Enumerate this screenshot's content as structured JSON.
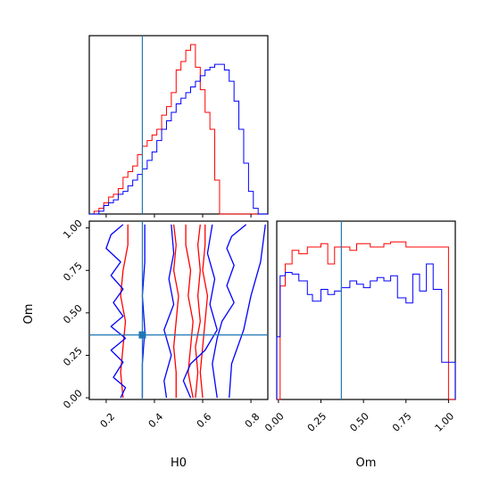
{
  "chart_data": [
    {
      "type": "histogram",
      "panel": "H0 marginal",
      "x_range": [
        0.13,
        0.87
      ],
      "truth": 0.35,
      "bins_x": [
        0.13,
        0.15,
        0.17,
        0.19,
        0.21,
        0.23,
        0.25,
        0.27,
        0.29,
        0.31,
        0.33,
        0.35,
        0.37,
        0.39,
        0.41,
        0.43,
        0.45,
        0.47,
        0.49,
        0.51,
        0.53,
        0.55,
        0.57,
        0.59,
        0.61,
        0.63,
        0.65,
        0.67,
        0.69,
        0.71,
        0.73,
        0.75,
        0.77,
        0.79,
        0.81,
        0.83,
        0.85,
        0.87
      ],
      "series": [
        {
          "color": "#ff0000",
          "values": [
            0,
            1,
            2,
            4,
            6,
            7,
            9,
            13,
            15,
            17,
            21,
            24,
            26,
            28,
            30,
            35,
            38,
            43,
            51,
            54,
            58,
            60,
            52,
            44,
            36,
            30,
            12,
            0,
            0,
            0,
            0,
            0,
            0,
            0,
            0,
            0,
            0
          ]
        },
        {
          "color": "#0000ff",
          "values": [
            0,
            0,
            1,
            3,
            4,
            5,
            7,
            8,
            10,
            12,
            14,
            16,
            19,
            22,
            26,
            30,
            33,
            36,
            39,
            41,
            43,
            45,
            47,
            49,
            51,
            52,
            53,
            53,
            51,
            47,
            40,
            30,
            18,
            8,
            2,
            0,
            0
          ]
        }
      ]
    },
    {
      "type": "contour",
      "panel": "H0 vs Om",
      "xlabel": "H0",
      "ylabel": "Om",
      "x_range": [
        0.13,
        0.87
      ],
      "y_range": [
        -0.01,
        1.04
      ],
      "xticks": [
        "0.2",
        "0.4",
        "0.6",
        "0.8"
      ],
      "yticks": [
        "0.00",
        "0.25",
        "0.50",
        "0.75",
        "1.00"
      ],
      "truth": [
        0.35,
        0.37
      ],
      "contours": [
        {
          "color": "#ff0000",
          "points": [
            [
              0.29,
              1.02
            ],
            [
              0.29,
              0.9
            ],
            [
              0.27,
              0.75
            ],
            [
              0.26,
              0.6
            ],
            [
              0.28,
              0.45
            ],
            [
              0.27,
              0.3
            ],
            [
              0.26,
              0.15
            ],
            [
              0.27,
              0.0
            ]
          ]
        },
        {
          "color": "#ff0000",
          "points": [
            [
              0.48,
              1.02
            ],
            [
              0.49,
              0.9
            ],
            [
              0.48,
              0.75
            ],
            [
              0.5,
              0.6
            ],
            [
              0.49,
              0.45
            ],
            [
              0.48,
              0.3
            ],
            [
              0.49,
              0.15
            ],
            [
              0.49,
              0.0
            ]
          ]
        },
        {
          "color": "#ff0000",
          "points": [
            [
              0.53,
              1.02
            ],
            [
              0.53,
              0.9
            ],
            [
              0.55,
              0.75
            ],
            [
              0.54,
              0.6
            ],
            [
              0.56,
              0.45
            ],
            [
              0.55,
              0.3
            ],
            [
              0.54,
              0.15
            ],
            [
              0.56,
              0.0
            ]
          ]
        },
        {
          "color": "#ff0000",
          "points": [
            [
              0.59,
              1.02
            ],
            [
              0.58,
              0.9
            ],
            [
              0.59,
              0.75
            ],
            [
              0.58,
              0.6
            ],
            [
              0.59,
              0.45
            ],
            [
              0.57,
              0.3
            ],
            [
              0.58,
              0.15
            ],
            [
              0.57,
              0.0
            ]
          ]
        },
        {
          "color": "#ff0000",
          "points": [
            [
              0.61,
              1.02
            ],
            [
              0.61,
              0.9
            ],
            [
              0.6,
              0.75
            ],
            [
              0.62,
              0.6
            ],
            [
              0.61,
              0.45
            ],
            [
              0.6,
              0.3
            ],
            [
              0.59,
              0.15
            ],
            [
              0.6,
              0.0
            ]
          ]
        },
        {
          "color": "#0000ff",
          "points": [
            [
              0.27,
              1.02
            ],
            [
              0.22,
              0.96
            ],
            [
              0.2,
              0.88
            ],
            [
              0.26,
              0.8
            ],
            [
              0.22,
              0.72
            ],
            [
              0.27,
              0.64
            ],
            [
              0.23,
              0.56
            ],
            [
              0.27,
              0.48
            ],
            [
              0.22,
              0.42
            ],
            [
              0.28,
              0.35
            ],
            [
              0.22,
              0.28
            ],
            [
              0.27,
              0.21
            ],
            [
              0.23,
              0.12
            ],
            [
              0.28,
              0.06
            ],
            [
              0.26,
              0.0
            ]
          ]
        },
        {
          "color": "#0000ff",
          "points": [
            [
              0.36,
              1.02
            ],
            [
              0.36,
              0.8
            ],
            [
              0.35,
              0.6
            ],
            [
              0.36,
              0.4
            ],
            [
              0.35,
              0.2
            ],
            [
              0.35,
              0.0
            ]
          ]
        },
        {
          "color": "#0000ff",
          "points": [
            [
              0.47,
              1.02
            ],
            [
              0.48,
              0.85
            ],
            [
              0.46,
              0.7
            ],
            [
              0.48,
              0.55
            ],
            [
              0.44,
              0.4
            ],
            [
              0.47,
              0.25
            ],
            [
              0.44,
              0.1
            ],
            [
              0.45,
              0.0
            ]
          ]
        },
        {
          "color": "#0000ff",
          "points": [
            [
              0.64,
              1.02
            ],
            [
              0.62,
              0.85
            ],
            [
              0.65,
              0.7
            ],
            [
              0.63,
              0.55
            ],
            [
              0.66,
              0.4
            ],
            [
              0.61,
              0.28
            ],
            [
              0.55,
              0.2
            ],
            [
              0.52,
              0.1
            ],
            [
              0.55,
              0.0
            ]
          ]
        },
        {
          "color": "#0000ff",
          "points": [
            [
              0.78,
              1.02
            ],
            [
              0.72,
              0.95
            ],
            [
              0.7,
              0.88
            ],
            [
              0.73,
              0.78
            ],
            [
              0.7,
              0.66
            ],
            [
              0.73,
              0.56
            ],
            [
              0.68,
              0.45
            ],
            [
              0.66,
              0.35
            ],
            [
              0.64,
              0.2
            ],
            [
              0.66,
              0.0
            ]
          ]
        },
        {
          "color": "#0000ff",
          "points": [
            [
              0.86,
              1.02
            ],
            [
              0.84,
              0.8
            ],
            [
              0.8,
              0.6
            ],
            [
              0.77,
              0.4
            ],
            [
              0.72,
              0.2
            ],
            [
              0.71,
              0.0
            ]
          ]
        }
      ]
    },
    {
      "type": "histogram",
      "panel": "Om marginal",
      "xlabel": "Om",
      "x_range": [
        -0.01,
        1.04
      ],
      "truth": 0.37,
      "xticks": [
        "0.00",
        "0.25",
        "0.50",
        "0.75",
        "1.00"
      ],
      "bins_x": [
        -0.01,
        0.01,
        0.04,
        0.08,
        0.12,
        0.17,
        0.2,
        0.25,
        0.29,
        0.33,
        0.37,
        0.42,
        0.46,
        0.5,
        0.54,
        0.58,
        0.62,
        0.66,
        0.7,
        0.75,
        0.79,
        0.83,
        0.87,
        0.91,
        0.96,
        1.0,
        1.04
      ],
      "series": [
        {
          "color": "#ff0000",
          "values": [
            0,
            0.67,
            0.8,
            0.88,
            0.86,
            0.9,
            0.9,
            0.92,
            0.8,
            0.9,
            0.9,
            0.88,
            0.92,
            0.92,
            0.9,
            0.9,
            0.92,
            0.93,
            0.93,
            0.9,
            0.9,
            0.9,
            0.9,
            0.9,
            0.9,
            0
          ]
        },
        {
          "color": "#0000ff",
          "values": [
            0.37,
            0.73,
            0.75,
            0.74,
            0.7,
            0.62,
            0.58,
            0.65,
            0.62,
            0.64,
            0.66,
            0.7,
            0.68,
            0.66,
            0.7,
            0.72,
            0.7,
            0.73,
            0.6,
            0.57,
            0.74,
            0.64,
            0.8,
            0.65,
            0.22,
            0.22
          ]
        }
      ]
    }
  ]
}
